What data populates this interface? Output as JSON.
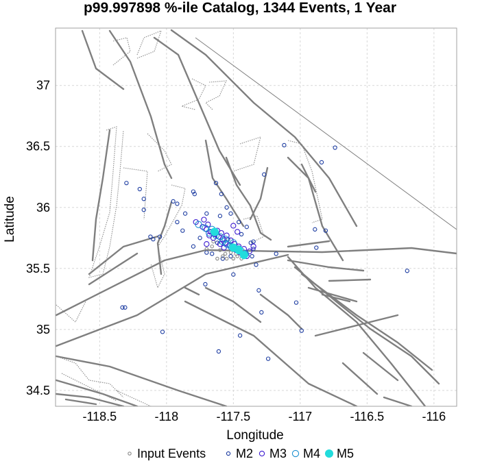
{
  "chart_data": {
    "type": "scatter",
    "title": "p99.997898 %-ile Catalog, 1344 Events, 1 Year",
    "xlabel": "Longitude",
    "ylabel": "Latitude",
    "xlim": [
      -118.83,
      -115.83
    ],
    "ylim": [
      34.37,
      37.47
    ],
    "grid": true,
    "x_ticks": [
      -118.5,
      -118,
      -117.5,
      -117,
      -116.5,
      -116
    ],
    "x_tick_labels": [
      "-118.5",
      "-118",
      "-117.5",
      "-117",
      "-116.5",
      "-116"
    ],
    "y_ticks": [
      34.5,
      35,
      35.5,
      36,
      36.5,
      37
    ],
    "y_tick_labels": [
      "34.5",
      "35",
      "35.5",
      "36",
      "36.5",
      "37"
    ],
    "legend": {
      "placement": "bottom",
      "entries": [
        {
          "label": "Input Events",
          "key": "input"
        },
        {
          "label": "M2",
          "key": "m2"
        },
        {
          "label": "M3",
          "key": "m3"
        },
        {
          "label": "M4",
          "key": "m4"
        },
        {
          "label": "M5",
          "key": "m5"
        }
      ]
    },
    "styles": {
      "input": {
        "color": "#888888",
        "fill": "none",
        "r": 2.2
      },
      "m2": {
        "color": "#1a3aa0",
        "fill": "none",
        "r": 2.6
      },
      "m3": {
        "color": "#3b1ad0",
        "fill": "none",
        "r": 3.6
      },
      "m4": {
        "color": "#1a8fd0",
        "fill": "none",
        "r": 4.6
      },
      "m5": {
        "color": "#22dcdc",
        "fill": "#22dcdc",
        "r": 5.5
      }
    },
    "series": [
      {
        "name": "M2",
        "key": "m2",
        "points": [
          [
            -118.3,
            36.2
          ],
          [
            -118.2,
            36.15
          ],
          [
            -118.17,
            36.07
          ],
          [
            -118.17,
            35.98
          ],
          [
            -118.12,
            35.76
          ],
          [
            -118.1,
            35.74
          ],
          [
            -118.05,
            35.76
          ],
          [
            -118.33,
            35.18
          ],
          [
            -118.31,
            35.18
          ],
          [
            -118.03,
            34.98
          ],
          [
            -117.95,
            36.05
          ],
          [
            -117.92,
            36.03
          ],
          [
            -117.86,
            35.95
          ],
          [
            -117.8,
            36.13
          ],
          [
            -117.79,
            36.11
          ],
          [
            -117.7,
            35.95
          ],
          [
            -117.75,
            35.75
          ],
          [
            -117.8,
            35.68
          ],
          [
            -117.71,
            35.37
          ],
          [
            -117.61,
            34.82
          ],
          [
            -117.5,
            35.45
          ],
          [
            -117.45,
            34.95
          ],
          [
            -117.37,
            35.71
          ],
          [
            -117.35,
            35.72
          ],
          [
            -117.33,
            35.53
          ],
          [
            -117.31,
            35.32
          ],
          [
            -117.29,
            35.14
          ],
          [
            -117.18,
            35.62
          ],
          [
            -117.27,
            36.27
          ],
          [
            -117.24,
            34.76
          ],
          [
            -117.12,
            36.51
          ],
          [
            -117.03,
            35.22
          ],
          [
            -116.99,
            34.99
          ],
          [
            -116.89,
            35.82
          ],
          [
            -116.88,
            35.67
          ],
          [
            -116.84,
            36.37
          ],
          [
            -116.81,
            35.81
          ],
          [
            -116.74,
            36.49
          ],
          [
            -116.2,
            35.48
          ],
          [
            -117.92,
            35.88
          ],
          [
            -117.88,
            35.81
          ],
          [
            -117.63,
            36.2
          ],
          [
            -117.59,
            36.11
          ],
          [
            -117.55,
            36.0
          ],
          [
            -117.52,
            35.95
          ],
          [
            -117.58,
            35.58
          ],
          [
            -117.52,
            35.6
          ],
          [
            -117.42,
            35.62
          ],
          [
            -117.46,
            35.88
          ],
          [
            -117.4,
            35.84
          ],
          [
            -117.36,
            35.6
          ],
          [
            -117.66,
            35.62
          ],
          [
            -117.7,
            35.63
          ],
          [
            -117.44,
            35.78
          ],
          [
            -117.6,
            35.93
          ],
          [
            -117.35,
            35.66
          ],
          [
            -117.62,
            35.71
          ],
          [
            -117.54,
            35.74
          ]
        ]
      },
      {
        "name": "Input Events",
        "key": "input",
        "points": [
          [
            -117.58,
            35.6
          ],
          [
            -117.56,
            35.62
          ],
          [
            -117.62,
            35.58
          ],
          [
            -117.5,
            35.65
          ],
          [
            -117.47,
            35.6
          ],
          [
            -117.44,
            35.58
          ],
          [
            -117.7,
            35.66
          ],
          [
            -117.66,
            35.68
          ],
          [
            -117.52,
            35.63
          ],
          [
            -117.55,
            35.58
          ],
          [
            -117.5,
            35.58
          ],
          [
            -117.6,
            35.65
          ],
          [
            -117.48,
            35.62
          ],
          [
            -117.65,
            35.72
          ]
        ]
      },
      {
        "name": "M3",
        "key": "m3",
        "points": [
          [
            -117.78,
            35.88
          ],
          [
            -117.73,
            35.84
          ],
          [
            -117.7,
            35.82
          ],
          [
            -117.67,
            35.8
          ],
          [
            -117.64,
            35.78
          ],
          [
            -117.61,
            35.76
          ],
          [
            -117.58,
            35.74
          ],
          [
            -117.56,
            35.71
          ],
          [
            -117.53,
            35.69
          ],
          [
            -117.5,
            35.67
          ],
          [
            -117.48,
            35.65
          ],
          [
            -117.45,
            35.63
          ],
          [
            -117.43,
            35.61
          ],
          [
            -117.4,
            35.6
          ],
          [
            -117.72,
            35.9
          ],
          [
            -117.69,
            35.86
          ],
          [
            -117.62,
            35.81
          ],
          [
            -117.59,
            35.79
          ],
          [
            -117.55,
            35.77
          ],
          [
            -117.52,
            35.73
          ],
          [
            -117.49,
            35.7
          ],
          [
            -117.46,
            35.68
          ],
          [
            -117.42,
            35.66
          ],
          [
            -117.65,
            35.75
          ],
          [
            -117.68,
            35.77
          ],
          [
            -117.6,
            35.7
          ],
          [
            -117.57,
            35.67
          ],
          [
            -117.35,
            35.68
          ],
          [
            -117.38,
            35.64
          ],
          [
            -117.7,
            35.7
          ],
          [
            -117.5,
            35.85
          ],
          [
            -117.47,
            35.8
          ]
        ]
      },
      {
        "name": "M4",
        "key": "m4",
        "points": [
          [
            -117.76,
            35.86
          ],
          [
            -117.68,
            35.79
          ],
          [
            -117.63,
            35.77
          ],
          [
            -117.58,
            35.72
          ],
          [
            -117.55,
            35.7
          ],
          [
            -117.52,
            35.68
          ],
          [
            -117.48,
            35.66
          ],
          [
            -117.44,
            35.64
          ],
          [
            -117.41,
            35.62
          ],
          [
            -117.66,
            35.82
          ],
          [
            -117.6,
            35.76
          ],
          [
            -117.5,
            35.71
          ],
          [
            -117.46,
            35.66
          ],
          [
            -117.56,
            35.74
          ],
          [
            -117.71,
            35.83
          ]
        ]
      },
      {
        "name": "M5",
        "key": "m5",
        "points": [
          [
            -117.5,
            35.67
          ],
          [
            -117.46,
            35.65
          ],
          [
            -117.42,
            35.61
          ],
          [
            -117.64,
            35.8
          ]
        ]
      }
    ]
  }
}
